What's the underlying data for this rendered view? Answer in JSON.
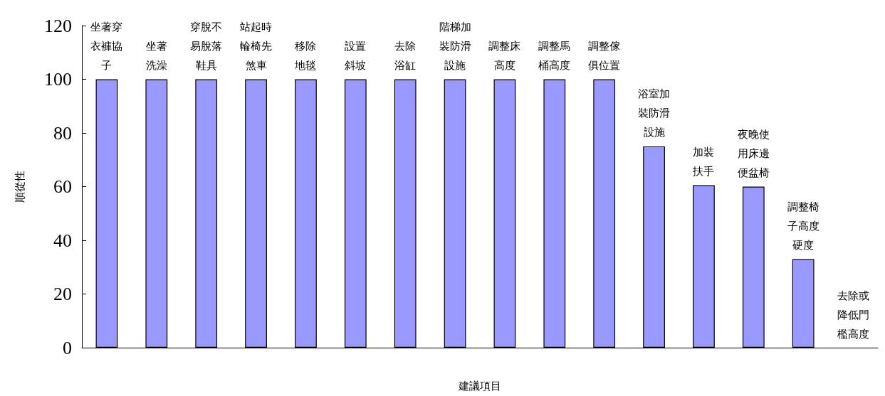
{
  "chart_data": {
    "type": "bar",
    "xlabel": "建議項目",
    "ylabel": "順從性",
    "categories": [
      "坐著穿衣褲協子",
      "坐著洗澡",
      "穿脫不易脫落鞋具",
      "站起時輪椅先煞車",
      "移除地毯",
      "設置斜坡",
      "去除浴缸",
      "階梯加裝防滑設施",
      "調整床高度",
      "調整馬桶高度",
      "調整傢俱位置",
      "浴室加裝防滑設施",
      "加裝扶手",
      "夜晚使用床邊便盆椅",
      "調整椅子高度硬度",
      "去除或降低門檻高度"
    ],
    "values": [
      100,
      100,
      100,
      100,
      100,
      100,
      100,
      100,
      100,
      100,
      100,
      75,
      60.5,
      60,
      33,
      0
    ],
    "color": "#9999ff",
    "ylim": [
      0,
      120
    ],
    "yticks": [
      0,
      20,
      40,
      60,
      80,
      100,
      120
    ],
    "grid": false,
    "tick_labels": "y"
  }
}
